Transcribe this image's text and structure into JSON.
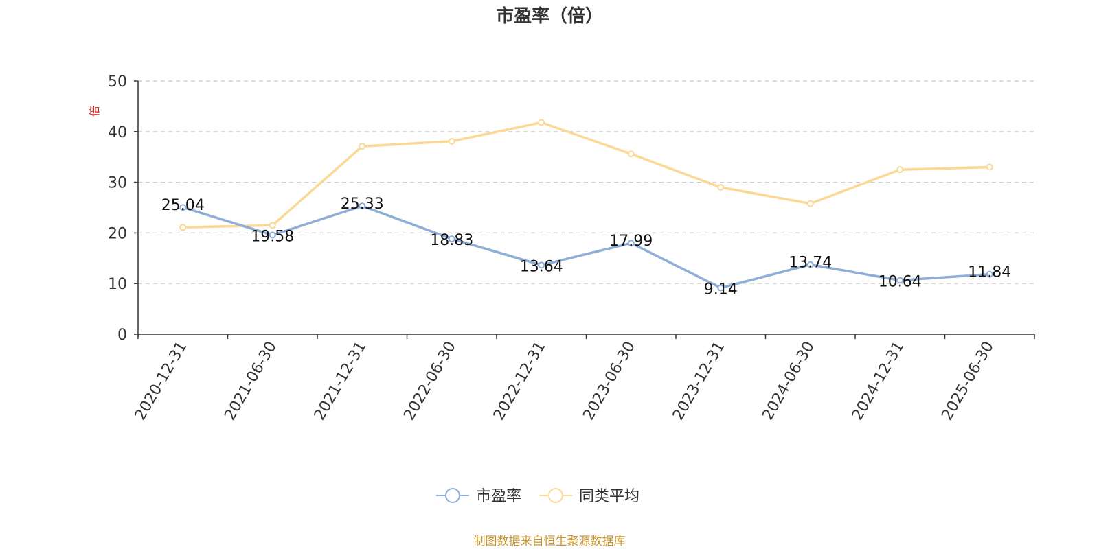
{
  "chart_data": {
    "type": "line",
    "title": "市盈率（倍）",
    "ylabel": "倍",
    "ylim": [
      0,
      50
    ],
    "yticks": [
      0,
      10,
      20,
      30,
      40,
      50
    ],
    "grid": true,
    "legend_position": "bottom-center",
    "categories": [
      "2020-12-31",
      "2021-06-30",
      "2021-12-31",
      "2022-06-30",
      "2022-12-31",
      "2023-06-30",
      "2023-12-31",
      "2024-06-30",
      "2024-12-31",
      "2025-06-30"
    ],
    "series": [
      {
        "name": "市盈率",
        "color": "#8eaed8",
        "values": [
          25.04,
          19.58,
          25.33,
          18.83,
          13.64,
          17.99,
          9.14,
          13.74,
          10.64,
          11.84
        ],
        "labels": [
          "25.04",
          "19.58",
          "25.33",
          "18.83",
          "13.64",
          "17.99",
          "9.14",
          "13.74",
          "10.64",
          "11.84"
        ]
      },
      {
        "name": "同类平均",
        "color": "#fad997",
        "values": [
          21.1,
          21.5,
          37.1,
          38.1,
          41.8,
          35.6,
          29.0,
          25.8,
          32.5,
          33.0
        ]
      }
    ]
  },
  "footer": {
    "source": "制图数据来自恒生聚源数据库"
  }
}
